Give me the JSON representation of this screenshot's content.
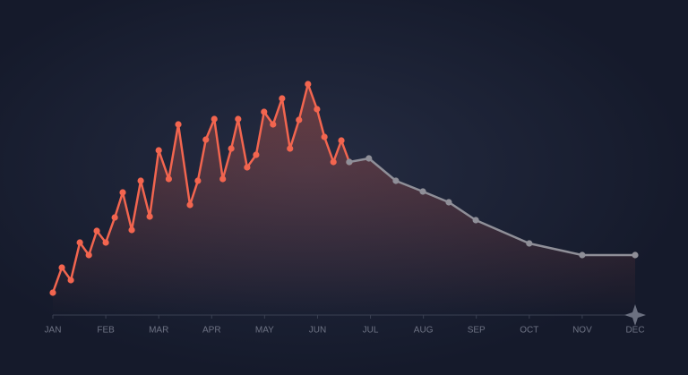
{
  "chart_data": {
    "type": "line",
    "xlim": [
      0,
      11
    ],
    "xticks": [
      {
        "value": 0,
        "label": "JAN"
      },
      {
        "value": 1,
        "label": "FEB"
      },
      {
        "value": 2,
        "label": "MAR"
      },
      {
        "value": 3,
        "label": "APR"
      },
      {
        "value": 4,
        "label": "MAY"
      },
      {
        "value": 5,
        "label": "JUN"
      },
      {
        "value": 6,
        "label": "JUL"
      },
      {
        "value": 7,
        "label": "AUG"
      },
      {
        "value": 8,
        "label": "SEP"
      },
      {
        "value": 9,
        "label": "OCT"
      },
      {
        "value": 10,
        "label": "NOV"
      },
      {
        "value": 11,
        "label": "DEC"
      }
    ],
    "series": [
      {
        "color": "#f2654f",
        "x": [
          0,
          0.17,
          0.34,
          0.51,
          0.68,
          0.83,
          1.0,
          1.17,
          1.32,
          1.49,
          1.66,
          1.83,
          2.0,
          2.19,
          2.37,
          2.59,
          2.74,
          2.89,
          3.05,
          3.21,
          3.37,
          3.5,
          3.67,
          3.84,
          3.99,
          4.16,
          4.33,
          4.48,
          4.65,
          4.82,
          4.99,
          5.13,
          5.3,
          5.45,
          5.6
        ],
        "values": [
          25,
          53,
          39,
          81,
          67,
          94,
          81,
          109,
          137,
          95,
          150,
          110,
          184,
          152,
          213,
          123,
          150,
          196,
          219,
          152,
          186,
          219,
          165,
          179,
          227,
          213,
          242,
          186,
          218,
          258,
          230,
          199,
          171,
          195,
          171
        ]
      },
      {
        "color": "#8f8f98",
        "x": [
          5.6,
          5.97,
          6.48,
          6.99,
          7.48,
          7.99,
          9.0,
          10.0,
          11
        ],
        "values": [
          171,
          175,
          150,
          138,
          126,
          106,
          80,
          67,
          67
        ]
      }
    ]
  }
}
